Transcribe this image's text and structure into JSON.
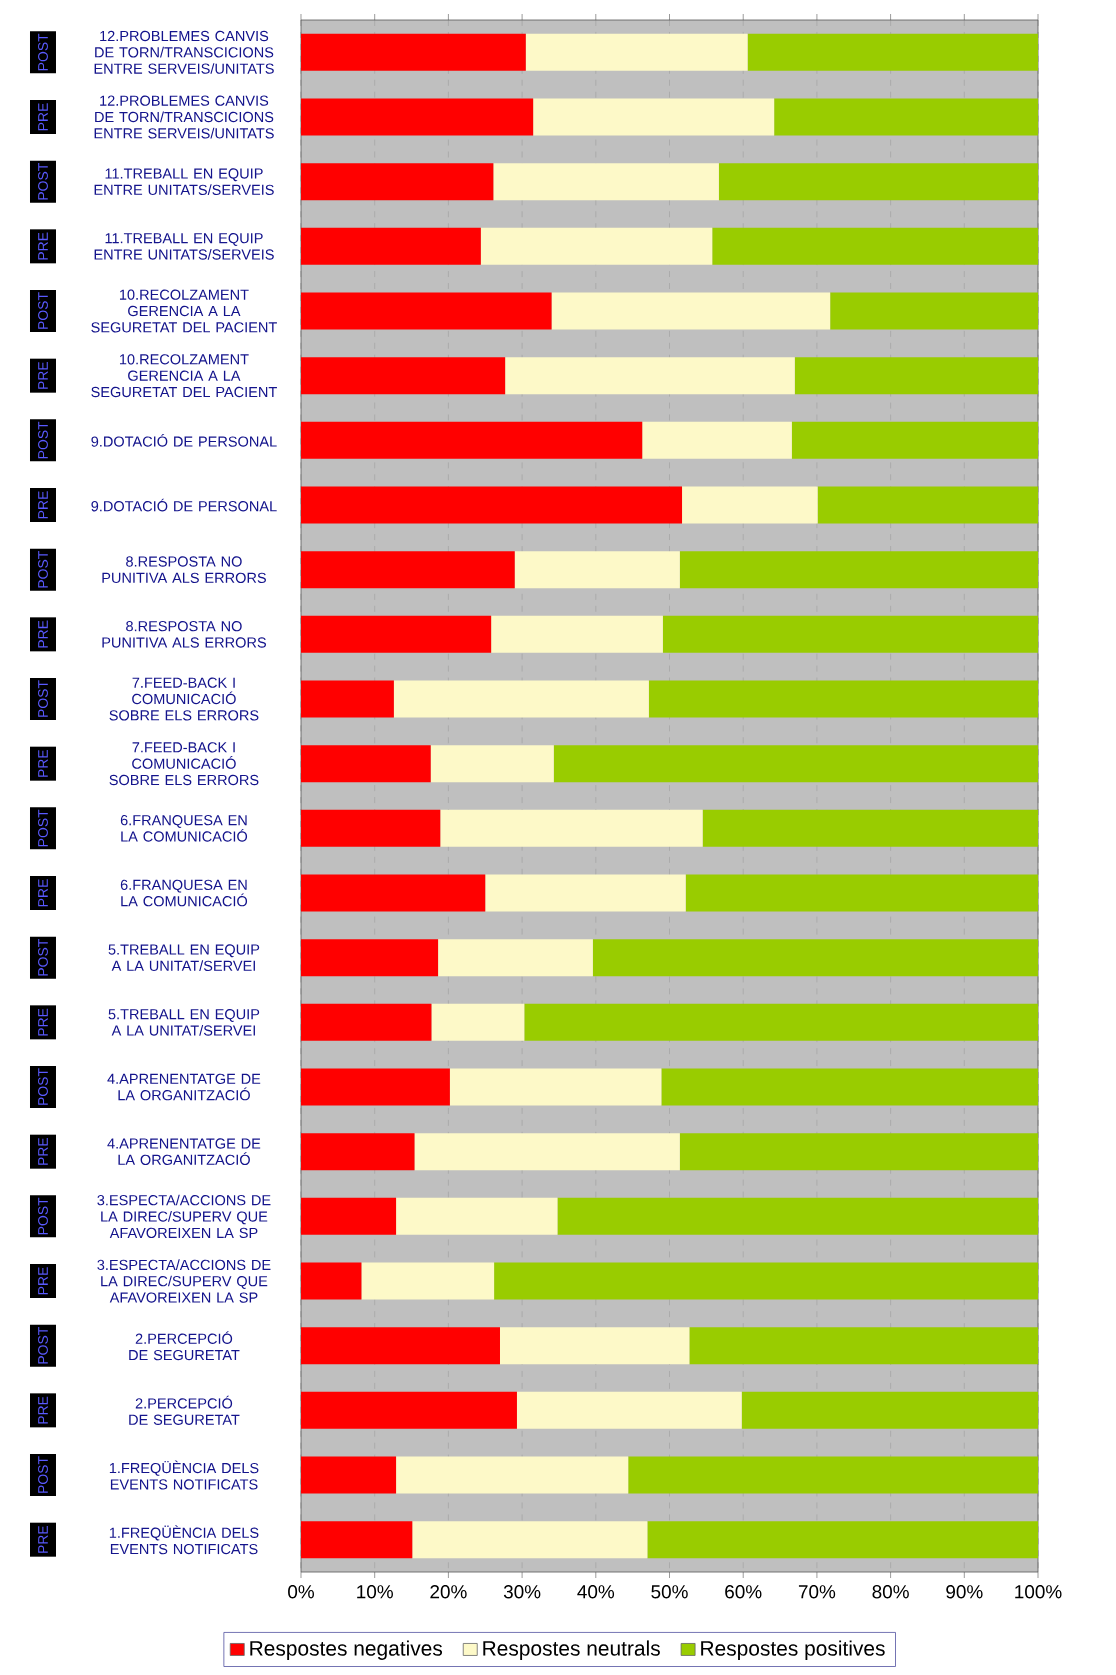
{
  "chart_data": {
    "type": "bar",
    "orientation": "horizontal",
    "stacked": true,
    "categories": [
      "12.PROBLEMES CANVIS DE TORN/TRANSCICIONS ENTRE SERVEIS/UNITATS",
      "12.PROBLEMES CANVIS DE TORN/TRANSCICIONS ENTRE SERVEIS/UNITATS",
      "11.TREBALL EN EQUIP ENTRE UNITATS/SERVEIS",
      "11.TREBALL EN EQUIP ENTRE UNITATS/SERVEIS",
      "10.RECOLZAMENT GERENCIA A LA SEGURETAT DEL PACIENT",
      "10.RECOLZAMENT GERENCIA A LA SEGURETAT DEL PACIENT",
      "9.DOTACIÓ DE PERSONAL",
      "9.DOTACIÓ DE PERSONAL",
      "8.RESPOSTA NO PUNITIVA ALS ERRORS",
      "8.RESPOSTA NO PUNITIVA ALS ERRORS",
      "7.FEED-BACK I COMUNICACIÓ SOBRE ELS ERRORS",
      "7.FEED-BACK I COMUNICACIÓ SOBRE ELS ERRORS",
      "6.FRANQUESA EN LA COMUNICACIÓ",
      "6.FRANQUESA EN LA COMUNICACIÓ",
      "5.TREBALL EN EQUIP A LA UNITAT/SERVEI",
      "5.TREBALL EN EQUIP A LA UNITAT/SERVEI",
      "4.APRENENTATGE DE LA ORGANITZACIÓ",
      "4.APRENENTATGE DE LA ORGANITZACIÓ",
      "3.ESPECTA/ACCIONS DE LA DIREC/SUPERV QUE AFAVOREIXEN LA SP",
      "3.ESPECTA/ACCIONS DE LA DIREC/SUPERV QUE AFAVOREIXEN LA SP",
      "2.PERCEPCIÓ DE SEGURETAT",
      "2.PERCEPCIÓ DE SEGURETAT",
      "1.FREQÜÈNCIA DELS EVENTS NOTIFICATS",
      "1.FREQÜÈNCIA DELS EVENTS NOTIFICATS"
    ],
    "y2_categories": [
      "POST",
      "PRE",
      "POST",
      "PRE",
      "POST",
      "PRE",
      "POST",
      "PRE",
      "POST",
      "PRE",
      "POST",
      "PRE",
      "POST",
      "PRE",
      "POST",
      "PRE",
      "POST",
      "PRE",
      "POST",
      "PRE",
      "POST",
      "PRE",
      "POST",
      "PRE"
    ],
    "series": [
      {
        "name": "Respostes negatives",
        "color": "#ff0000",
        "values": [
          30.5,
          31.5,
          26.1,
          24.4,
          34.0,
          27.7,
          46.3,
          51.7,
          29.0,
          25.8,
          12.6,
          17.6,
          18.9,
          25.0,
          18.6,
          17.7,
          20.2,
          15.4,
          12.9,
          8.2,
          27.0,
          29.3,
          12.9,
          15.1
        ]
      },
      {
        "name": "Respostes neutrals",
        "color": "#fdf9c8",
        "values": [
          30.1,
          32.7,
          30.6,
          31.4,
          37.8,
          39.3,
          20.3,
          18.4,
          22.4,
          23.3,
          34.6,
          16.7,
          35.6,
          27.2,
          21.0,
          12.6,
          28.7,
          36.0,
          21.9,
          18.0,
          25.7,
          30.5,
          31.5,
          31.9
        ]
      },
      {
        "name": "Respostes positives",
        "color": "#99cc00",
        "values": [
          39.4,
          35.8,
          43.3,
          44.2,
          28.2,
          33.0,
          33.4,
          29.9,
          48.6,
          50.9,
          52.8,
          65.7,
          45.5,
          47.8,
          60.4,
          69.7,
          51.1,
          48.6,
          65.2,
          73.8,
          47.3,
          40.2,
          55.6,
          53.0
        ]
      }
    ],
    "xlim": [
      0,
      100
    ],
    "xticks": [
      {
        "value": 0,
        "label": "0%"
      },
      {
        "value": 10,
        "label": "10%"
      },
      {
        "value": 20,
        "label": "20%"
      },
      {
        "value": 30,
        "label": "30%"
      },
      {
        "value": 40,
        "label": "40%"
      },
      {
        "value": 50,
        "label": "50%"
      },
      {
        "value": 60,
        "label": "60%"
      },
      {
        "value": 70,
        "label": "70%"
      },
      {
        "value": 80,
        "label": "80%"
      },
      {
        "value": 90,
        "label": "90%"
      },
      {
        "value": 100,
        "label": "100%"
      }
    ],
    "grid": "x",
    "legend": "bottom"
  }
}
